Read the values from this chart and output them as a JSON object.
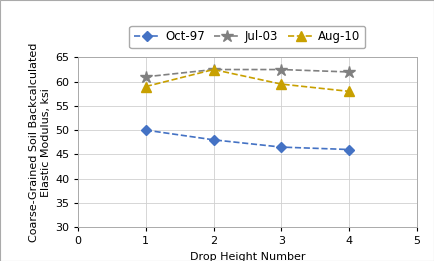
{
  "x": [
    1,
    2,
    3,
    4
  ],
  "oct97": [
    50,
    48,
    46.5,
    46
  ],
  "jul03": [
    61,
    62.5,
    62.5,
    62
  ],
  "aug10": [
    59,
    62.5,
    59.5,
    58
  ],
  "oct97_color": "#4472C4",
  "jul03_color": "#808080",
  "aug10_color": "#C8A000",
  "xlabel": "Drop Height Number",
  "ylabel": "Coarse-Grained Soil Backcalculated\nElastic Modulus, ksi",
  "xlim": [
    0,
    5
  ],
  "ylim": [
    30,
    65
  ],
  "yticks": [
    30,
    35,
    40,
    45,
    50,
    55,
    60,
    65
  ],
  "xticks": [
    0,
    1,
    2,
    3,
    4,
    5
  ],
  "legend_labels": [
    "Oct-97",
    "Jul-03",
    "Aug-10"
  ],
  "linestyle": "--",
  "background_color": "#ffffff",
  "axis_fontsize": 8,
  "tick_fontsize": 8,
  "legend_fontsize": 8.5
}
